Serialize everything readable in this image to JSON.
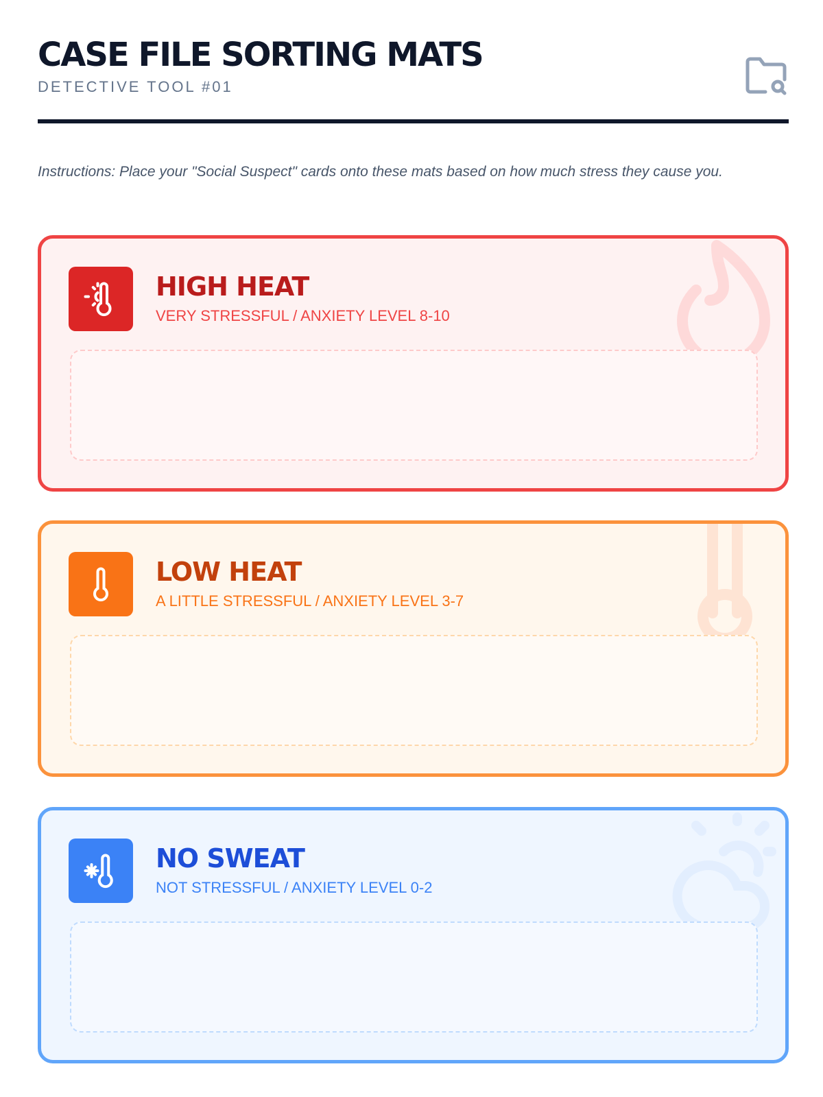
{
  "header": {
    "title": "CASE FILE SORTING MATS",
    "subtitle": "DETECTIVE TOOL #01",
    "icon": "folder-search-icon"
  },
  "instructions": "Instructions: Place your \"Social Suspect\" cards onto these mats based on how much stress they cause you.",
  "mats": [
    {
      "title": "HIGH HEAT",
      "subtitle": "VERY STRESSFUL / ANXIETY LEVEL 8-10",
      "icon": "thermometer-sun-icon",
      "bg_icon": "flame-icon",
      "accent": "#ef4444",
      "icon_bg": "#dc2626",
      "title_color": "#b91c1c"
    },
    {
      "title": "LOW HEAT",
      "subtitle": "A LITTLE STRESSFUL / ANXIETY LEVEL 3-7",
      "icon": "thermometer-icon",
      "bg_icon": "thermometer-icon",
      "accent": "#fb923c",
      "icon_bg": "#f97316",
      "title_color": "#c2410c"
    },
    {
      "title": "NO SWEAT",
      "subtitle": "NOT STRESSFUL / ANXIETY LEVEL 0-2",
      "icon": "thermometer-snowflake-icon",
      "bg_icon": "cloud-sun-icon",
      "accent": "#60a5fa",
      "icon_bg": "#3b82f6",
      "title_color": "#1d4ed8"
    }
  ]
}
